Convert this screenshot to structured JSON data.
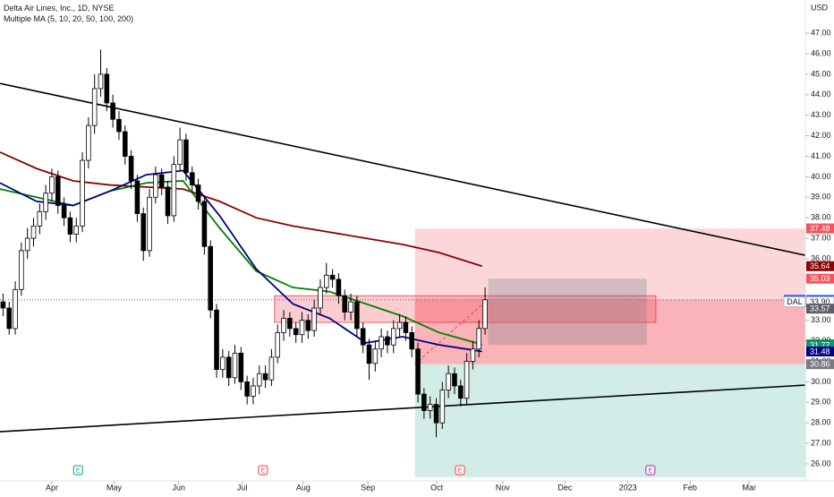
{
  "header": {
    "title": "Delta Air Lines, Inc., 1D, NYSE",
    "indicator": "Multiple MA (5, 10, 20, 50, 100, 200)"
  },
  "chart_data": {
    "type": "candlestick",
    "currency": "USD",
    "open": [
      33.9,
      33.6,
      32.6,
      34.5,
      36.4,
      37.0,
      37.6,
      38.3,
      39.2,
      40.0,
      38.6,
      38.0,
      37.2,
      37.6,
      40.8,
      42.5,
      44.3,
      45.0,
      43.6,
      42.8,
      42.2,
      41.0,
      39.8,
      38.2,
      36.4,
      39.0,
      40.1,
      39.5,
      38.1,
      40.6,
      41.8,
      40.2,
      39.6,
      38.8,
      36.6,
      33.5,
      30.6,
      31.2,
      30.2,
      31.4,
      30.0,
      29.3,
      29.8,
      30.4,
      30.1,
      31.2,
      32.4,
      33.1,
      32.6,
      32.3,
      33.0,
      32.5,
      33.6,
      34.6,
      35.2,
      35.0,
      34.2,
      33.4,
      33.9,
      32.6,
      31.8,
      30.9,
      31.6,
      32.2,
      31.8,
      32.6,
      32.9,
      32.4,
      31.6,
      29.4,
      28.6,
      28.9,
      28.0,
      29.6,
      30.4,
      29.8,
      29.2,
      31.0,
      31.6,
      32.6
    ],
    "high": [
      34.3,
      33.9,
      34.9,
      36.8,
      37.5,
      38.0,
      38.7,
      39.6,
      40.4,
      40.3,
      39.0,
      38.3,
      38.0,
      41.2,
      42.9,
      45.0,
      46.2,
      45.3,
      44.0,
      43.2,
      42.5,
      41.3,
      40.1,
      38.5,
      39.4,
      40.5,
      40.4,
      39.8,
      41.0,
      42.4,
      42.1,
      40.5,
      39.9,
      39.1,
      36.9,
      33.8,
      31.6,
      31.5,
      31.8,
      31.7,
      30.3,
      30.2,
      30.8,
      30.8,
      31.6,
      32.8,
      33.5,
      33.4,
      32.9,
      33.4,
      33.3,
      34.0,
      35.0,
      35.8,
      35.5,
      35.3,
      34.5,
      34.3,
      34.2,
      32.9,
      32.1,
      32.0,
      32.6,
      32.5,
      33.0,
      33.3,
      33.2,
      32.7,
      31.9,
      29.7,
      29.3,
      29.2,
      30.0,
      30.8,
      30.7,
      30.1,
      31.4,
      32.0,
      33.0,
      34.6
    ],
    "low": [
      33.2,
      32.3,
      32.3,
      34.2,
      36.0,
      36.6,
      37.2,
      37.9,
      38.8,
      38.2,
      37.6,
      36.8,
      36.8,
      37.3,
      40.4,
      42.1,
      43.9,
      43.2,
      42.4,
      41.8,
      40.6,
      39.4,
      37.8,
      35.9,
      36.1,
      38.7,
      39.1,
      37.7,
      37.8,
      40.3,
      39.8,
      39.2,
      38.4,
      36.2,
      33.1,
      30.2,
      30.2,
      29.8,
      29.9,
      29.6,
      28.9,
      28.9,
      29.4,
      29.7,
      29.8,
      30.9,
      32.0,
      32.2,
      31.9,
      31.9,
      32.1,
      32.2,
      33.3,
      34.3,
      34.6,
      33.8,
      33.0,
      33.0,
      32.2,
      31.4,
      30.1,
      30.5,
      31.2,
      31.4,
      31.4,
      32.2,
      32.0,
      31.2,
      29.0,
      28.2,
      28.2,
      27.3,
      27.7,
      29.2,
      29.4,
      28.8,
      28.9,
      30.6,
      31.2,
      32.3
    ],
    "close": [
      33.6,
      32.6,
      34.5,
      36.4,
      37.0,
      37.6,
      38.3,
      39.2,
      40.0,
      38.6,
      38.0,
      37.2,
      37.6,
      40.8,
      42.5,
      44.3,
      45.0,
      43.6,
      42.8,
      42.2,
      41.0,
      39.8,
      38.2,
      36.4,
      39.0,
      40.1,
      39.5,
      38.1,
      40.6,
      41.8,
      40.2,
      39.6,
      38.8,
      36.6,
      33.5,
      30.6,
      31.2,
      30.2,
      31.4,
      30.0,
      29.3,
      29.8,
      30.4,
      30.1,
      31.2,
      32.4,
      33.1,
      32.6,
      32.3,
      33.0,
      32.5,
      33.6,
      34.6,
      35.2,
      35.0,
      34.2,
      33.4,
      33.9,
      32.6,
      31.8,
      30.9,
      31.6,
      32.2,
      31.8,
      32.6,
      32.9,
      32.4,
      31.6,
      29.4,
      28.6,
      28.9,
      28.0,
      29.6,
      30.4,
      29.8,
      29.2,
      31.0,
      31.6,
      32.6,
      34.0
    ],
    "up_color": "#ffffff",
    "down_color": "#000000",
    "xlim": [
      0,
      132
    ],
    "xticks": [
      {
        "value": 8.5,
        "label": "Apr"
      },
      {
        "value": 18.7,
        "label": "May"
      },
      {
        "value": 29.3,
        "label": "Jun"
      },
      {
        "value": 39.7,
        "label": "Jul"
      },
      {
        "value": 49.7,
        "label": "Aug"
      },
      {
        "value": 60.3,
        "label": "Sep"
      },
      {
        "value": 71.6,
        "label": "Oct"
      },
      {
        "value": 82.4,
        "label": "Nov"
      },
      {
        "value": 92.6,
        "label": "Dec"
      },
      {
        "value": 102.9,
        "label": "2023"
      },
      {
        "value": 113.1,
        "label": "Feb"
      },
      {
        "value": 122.8,
        "label": "Mar"
      }
    ],
    "ylim": [
      25.17,
      48.62
    ],
    "yticks": [
      {
        "value": 26,
        "label": "26.00"
      },
      {
        "value": 27,
        "label": "27.00"
      },
      {
        "value": 28,
        "label": "28.00"
      },
      {
        "value": 29,
        "label": "29.00"
      },
      {
        "value": 30,
        "label": "30.00"
      },
      {
        "value": 31,
        "label": "31.00"
      },
      {
        "value": 32,
        "label": "32.00"
      },
      {
        "value": 33,
        "label": "33.00"
      },
      {
        "value": 34,
        "label": "34.00"
      },
      {
        "value": 35,
        "label": "35.00"
      },
      {
        "value": 36,
        "label": "36.00"
      },
      {
        "value": 37,
        "label": "37.00"
      },
      {
        "value": 38,
        "label": "38.00"
      },
      {
        "value": 39,
        "label": "39.00"
      },
      {
        "value": 40,
        "label": "40.00"
      },
      {
        "value": 41,
        "label": "41.00"
      },
      {
        "value": 42,
        "label": "42.00"
      },
      {
        "value": 43,
        "label": "43.00"
      },
      {
        "value": 44,
        "label": "44.00"
      },
      {
        "value": 45,
        "label": "45.00"
      },
      {
        "value": 46,
        "label": "46.00"
      },
      {
        "value": 47,
        "label": "47.00"
      }
    ],
    "moving_averages": {
      "x": [
        0,
        6,
        12,
        18,
        24,
        30,
        36,
        42,
        48,
        54,
        60,
        66,
        72,
        79
      ],
      "lines": [
        {
          "color": "#8b0000",
          "values": [
            41.2,
            40.4,
            39.8,
            39.6,
            39.5,
            39.4,
            38.8,
            38.0,
            37.6,
            37.3,
            37.0,
            36.7,
            36.3,
            35.64
          ]
        },
        {
          "color": "#008000",
          "values": [
            39.4,
            39.0,
            38.6,
            39.3,
            39.7,
            39.8,
            37.5,
            35.4,
            34.6,
            34.4,
            33.8,
            33.2,
            32.4,
            31.82
          ]
        },
        {
          "color": "#000080",
          "values": [
            39.7,
            38.8,
            38.6,
            39.3,
            40.1,
            40.3,
            38.1,
            35.5,
            33.8,
            33.1,
            31.9,
            32.2,
            31.8,
            31.48
          ]
        }
      ]
    },
    "trendlines": [
      {
        "x": [
          0,
          132
        ],
        "y": [
          44.55,
          36.17
        ]
      },
      {
        "x": [
          0,
          132
        ],
        "y": [
          27.57,
          29.84
        ]
      }
    ],
    "zones": [
      {
        "x": [
          68,
          132
        ],
        "y": [
          34.0,
          37.48
        ],
        "color": "rgba(242,54,69,0.2)"
      },
      {
        "x": [
          68,
          132
        ],
        "y": [
          30.86,
          34.0
        ],
        "color": "rgba(242,54,69,0.38)"
      },
      {
        "x": [
          68,
          132
        ],
        "y": [
          25.34,
          30.86
        ],
        "color": "rgba(8,153,129,0.18)"
      },
      {
        "x": [
          45,
          107.5
        ],
        "y": [
          32.9,
          34.2
        ],
        "color": "rgba(242,54,69,0.25)"
      },
      {
        "x": [
          80,
          106
        ],
        "y": [
          31.8,
          35.03
        ],
        "color": "rgba(120,123,134,0.3)"
      }
    ],
    "dashed_line": {
      "x": [
        68,
        79.9
      ],
      "y": [
        30.86,
        34.0
      ]
    },
    "last_price": 34.0,
    "price_labels": [
      {
        "value": 37.48,
        "label": "37.48",
        "color": "#f7525f"
      },
      {
        "value": 35.64,
        "label": "35.64",
        "color": "#8b0000"
      },
      {
        "value": 35.03,
        "label": "35.03",
        "color": "#f7525f"
      },
      {
        "value": 34.0,
        "label": "34.00",
        "color": "#2962ff",
        "tag": "Post"
      },
      {
        "value": 33.9,
        "label": "33.90",
        "color": "#ffffff",
        "tag": "DAL"
      },
      {
        "value": 33.57,
        "label": "33.57",
        "color": "#5d606b"
      },
      {
        "value": 31.82,
        "label": "31.82",
        "color": "#008000"
      },
      {
        "value": 31.77,
        "label": "31.77",
        "color": "#089981"
      },
      {
        "value": 31.48,
        "label": "31.48",
        "color": "#000080"
      },
      {
        "value": 30.86,
        "label": "30.86",
        "color": "#787b86"
      }
    ],
    "events": [
      {
        "x": 12.8,
        "label": "E",
        "color": "#089981"
      },
      {
        "x": 43.1,
        "label": "E",
        "color": "#f23645"
      },
      {
        "x": 75.4,
        "label": "E",
        "color": "#f23645"
      },
      {
        "x": 106.6,
        "label": "E",
        "color": "#9c27b0"
      }
    ]
  }
}
